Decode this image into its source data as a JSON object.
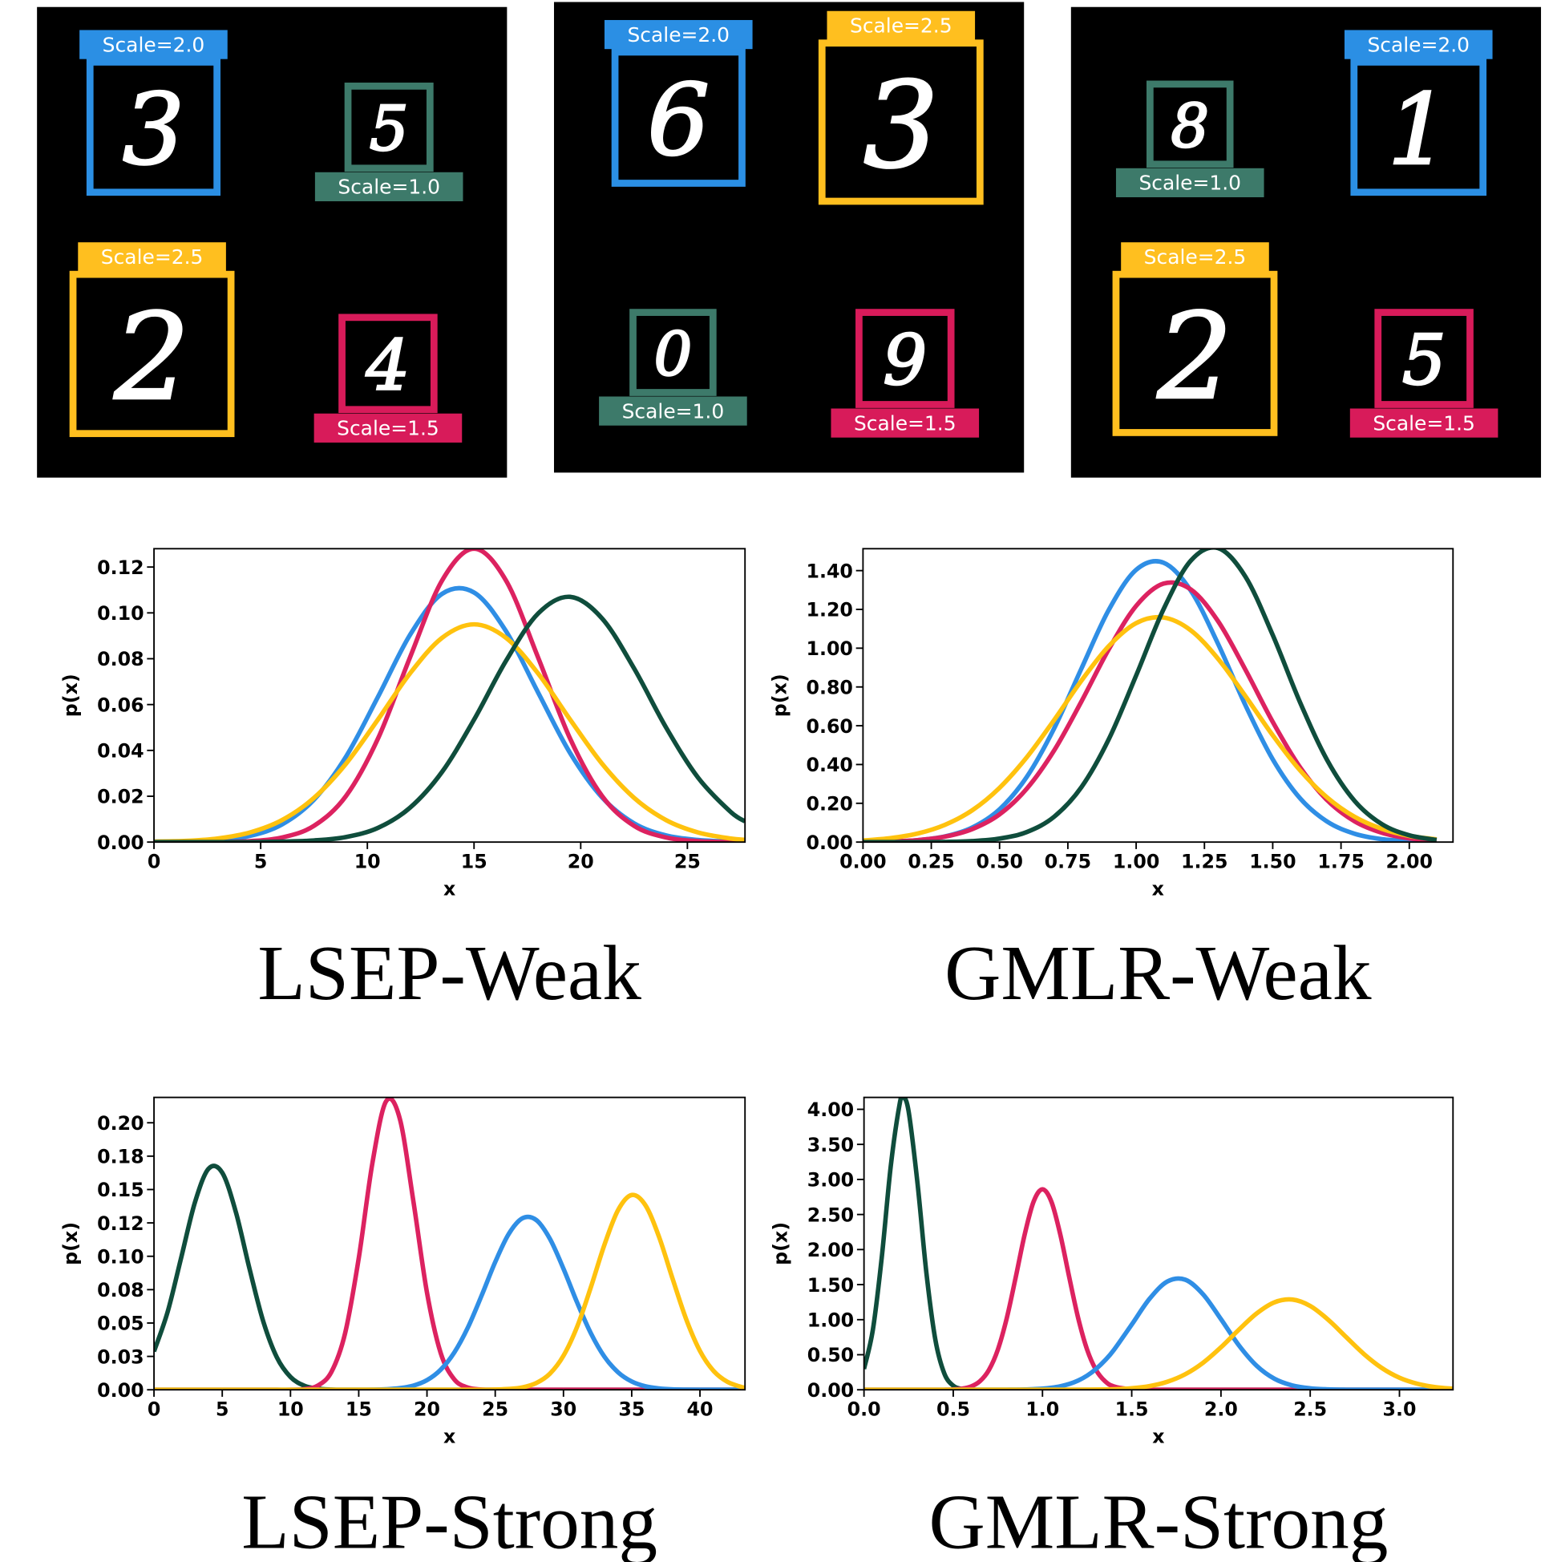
{
  "panels": [
    {
      "boxes": [
        {
          "digit": "3",
          "label": "Scale=2.0",
          "color": "#2b8fe4"
        },
        {
          "digit": "5",
          "label": "Scale=1.0",
          "color": "#3d7a6a"
        },
        {
          "digit": "2",
          "label": "Scale=2.5",
          "color": "#ffbf1f"
        },
        {
          "digit": "4",
          "label": "Scale=1.5",
          "color": "#d81b5a"
        }
      ]
    },
    {
      "boxes": [
        {
          "digit": "6",
          "label": "Scale=2.0",
          "color": "#2b8fe4"
        },
        {
          "digit": "3",
          "label": "Scale=2.5",
          "color": "#ffbf1f"
        },
        {
          "digit": "0",
          "label": "Scale=1.0",
          "color": "#3d7a6a"
        },
        {
          "digit": "9",
          "label": "Scale=1.5",
          "color": "#d81b5a"
        }
      ]
    },
    {
      "boxes": [
        {
          "digit": "8",
          "label": "Scale=1.0",
          "color": "#3d7a6a"
        },
        {
          "digit": "1",
          "label": "Scale=2.0",
          "color": "#2b8fe4"
        },
        {
          "digit": "2",
          "label": "Scale=2.5",
          "color": "#ffbf1f"
        },
        {
          "digit": "5",
          "label": "Scale=1.5",
          "color": "#d81b5a"
        }
      ]
    }
  ],
  "chart_data": [
    {
      "type": "line",
      "title": "LSEP-Weak",
      "x_label": "x",
      "y_label": "p(x)",
      "xlim": [
        0,
        27.7
      ],
      "ylim": [
        0,
        0.128
      ],
      "xticks": [
        0,
        5,
        10,
        15,
        20,
        25
      ],
      "yticks": [
        {
          "value": 0,
          "label": "0.00"
        },
        0.02,
        0.04,
        0.06,
        0.08,
        {
          "value": 0.1,
          "label": "0.10"
        },
        0.12
      ],
      "x": [
        0,
        1.5,
        3,
        4.5,
        6,
        7.5,
        9,
        10.5,
        12,
        13.5,
        15,
        16.5,
        18,
        19.5,
        21,
        22.5,
        24,
        25.5,
        27,
        27.7
      ],
      "series": [
        {
          "color": "#2f8ee5",
          "values": [
            0.0,
            0.0002,
            0.0008,
            0.0027,
            0.0077,
            0.0185,
            0.0373,
            0.0634,
            0.0904,
            0.1083,
            0.1089,
            0.092,
            0.0653,
            0.0389,
            0.0195,
            0.0082,
            0.0029,
            0.0009,
            0.0002,
            0.0001
          ]
        },
        {
          "color": "#dc2260",
          "values": [
            0.0,
            0.0,
            0.0,
            0.0004,
            0.002,
            0.0071,
            0.0201,
            0.0452,
            0.0806,
            0.1141,
            0.128,
            0.1141,
            0.0806,
            0.0452,
            0.0201,
            0.0071,
            0.002,
            0.0004,
            0.0,
            0.0
          ]
        },
        {
          "color": "#ffc20e",
          "values": [
            0.0002,
            0.0005,
            0.0016,
            0.0042,
            0.0096,
            0.0193,
            0.0342,
            0.0535,
            0.0736,
            0.0891,
            0.095,
            0.0891,
            0.0736,
            0.0535,
            0.0342,
            0.0193,
            0.0096,
            0.0042,
            0.0016,
            0.001
          ]
        },
        {
          "color": "#0f4d3c",
          "values": [
            0.0,
            0.0,
            0.0,
            0.0,
            0.0002,
            0.0007,
            0.0022,
            0.0062,
            0.015,
            0.0306,
            0.0534,
            0.0791,
            0.0997,
            0.107,
            0.0976,
            0.0758,
            0.05,
            0.0281,
            0.0134,
            0.009
          ]
        }
      ]
    },
    {
      "type": "line",
      "title": "GMLR-Weak",
      "x_label": "x",
      "y_label": "p(x)",
      "xlim": [
        0,
        2.16
      ],
      "ylim": [
        0,
        1.513
      ],
      "xticks": [
        {
          "value": 0,
          "label": "0.00"
        },
        0.25,
        {
          "value": 0.5,
          "label": "0.50"
        },
        0.75,
        {
          "value": 1,
          "label": "1.00"
        },
        1.25,
        {
          "value": 1.5,
          "label": "1.50"
        },
        1.75,
        {
          "value": 2,
          "label": "2.00"
        }
      ],
      "yticks": [
        {
          "value": 0,
          "label": "0.00"
        },
        {
          "value": 0.2,
          "label": "0.20"
        },
        {
          "value": 0.4,
          "label": "0.40"
        },
        {
          "value": 0.6,
          "label": "0.60"
        },
        {
          "value": 0.8,
          "label": "0.80"
        },
        {
          "value": 1,
          "label": "1.00"
        },
        {
          "value": 1.2,
          "label": "1.20"
        },
        {
          "value": 1.4,
          "label": "1.40"
        }
      ],
      "x": [
        0,
        0.1,
        0.2,
        0.3,
        0.4,
        0.5,
        0.6,
        0.7,
        0.8,
        0.9,
        1.0,
        1.1,
        1.2,
        1.3,
        1.4,
        1.5,
        1.6,
        1.7,
        1.8,
        1.9,
        2.0,
        2.1
      ],
      "series": [
        {
          "color": "#2f8ee5",
          "values": [
            0.001,
            0.003,
            0.01,
            0.029,
            0.075,
            0.169,
            0.337,
            0.587,
            0.896,
            1.198,
            1.404,
            1.441,
            1.297,
            1.022,
            0.706,
            0.427,
            0.226,
            0.105,
            0.043,
            0.015,
            0.005,
            0.001
          ]
        },
        {
          "color": "#dc2260",
          "values": [
            0.001,
            0.003,
            0.01,
            0.028,
            0.067,
            0.143,
            0.276,
            0.473,
            0.726,
            0.995,
            1.218,
            1.333,
            1.303,
            1.139,
            0.889,
            0.62,
            0.386,
            0.215,
            0.107,
            0.048,
            0.019,
            0.007
          ]
        },
        {
          "color": "#ffc20e",
          "values": [
            0.008,
            0.02,
            0.044,
            0.089,
            0.164,
            0.28,
            0.438,
            0.63,
            0.833,
            1.011,
            1.129,
            1.158,
            1.092,
            0.945,
            0.753,
            0.551,
            0.37,
            0.229,
            0.13,
            0.068,
            0.032,
            0.014
          ]
        },
        {
          "color": "#0f4d3c",
          "values": [
            0.0,
            0.0,
            0.0,
            0.001,
            0.005,
            0.018,
            0.052,
            0.131,
            0.284,
            0.531,
            0.859,
            1.2,
            1.451,
            1.516,
            1.369,
            1.068,
            0.721,
            0.421,
            0.212,
            0.092,
            0.035,
            0.011
          ]
        }
      ]
    },
    {
      "type": "line",
      "title": "LSEP-Strong",
      "x_label": "x",
      "y_label": "p(x)",
      "xlim": [
        0,
        43.3
      ],
      "ylim": [
        0,
        0.219
      ],
      "xticks": [
        0,
        5,
        10,
        15,
        20,
        25,
        30,
        35,
        40
      ],
      "yticks": [
        {
          "value": 0,
          "label": "0.00"
        },
        {
          "value": 0.025,
          "label": "0.03"
        },
        0.05,
        {
          "value": 0.075,
          "label": "0.08"
        },
        {
          "value": 0.1,
          "label": "0.10"
        },
        {
          "value": 0.125,
          "label": "0.12"
        },
        0.15,
        {
          "value": 0.175,
          "label": "0.18"
        },
        {
          "value": 0.2,
          "label": "0.20"
        }
      ],
      "x": [
        0,
        1,
        2,
        3,
        4,
        5,
        6,
        7,
        8,
        9,
        10,
        11,
        12,
        13,
        14,
        15,
        16,
        17,
        18,
        19,
        20,
        21,
        22,
        23,
        24,
        25,
        26,
        27,
        28,
        29,
        30,
        31,
        32,
        33,
        34,
        35,
        36,
        37,
        38,
        39,
        40,
        41,
        42,
        43,
        43.3
      ],
      "series": [
        {
          "color": "#0f4d3c",
          "values": [
            0.0287,
            0.0584,
            0.0993,
            0.1404,
            0.1656,
            0.1626,
            0.133,
            0.0906,
            0.0514,
            0.0243,
            0.0096,
            0.0031,
            0.0009,
            0.0002,
            0,
            0,
            0,
            0,
            0,
            0,
            0,
            0,
            0,
            0,
            0,
            0,
            0,
            0,
            0,
            0,
            0,
            0,
            0,
            0,
            0,
            0,
            0,
            0,
            0,
            0,
            0,
            0,
            0,
            0,
            0
          ]
        },
        {
          "color": "#dc2260",
          "values": [
            0,
            0,
            0,
            0,
            0,
            0,
            0,
            0,
            0,
            0,
            0,
            0.0005,
            0.0031,
            0.0134,
            0.0423,
            0.0985,
            0.1697,
            0.216,
            0.2034,
            0.1415,
            0.0728,
            0.0277,
            0.0078,
            0.0016,
            0.0002,
            0,
            0,
            0,
            0,
            0,
            0,
            0,
            0,
            0,
            0,
            0,
            0,
            0,
            0,
            0,
            0,
            0,
            0,
            0,
            0
          ]
        },
        {
          "color": "#2f8ee5",
          "values": [
            0,
            0,
            0,
            0,
            0,
            0,
            0,
            0,
            0,
            0,
            0,
            0,
            0,
            0,
            0,
            0,
            0.0001,
            0.0004,
            0.0012,
            0.0031,
            0.0072,
            0.015,
            0.0279,
            0.0467,
            0.0705,
            0.0957,
            0.1169,
            0.1285,
            0.1272,
            0.1132,
            0.0907,
            0.0654,
            0.0425,
            0.0248,
            0.0131,
            0.0062,
            0.0026,
            0.001,
            0.0003,
            0.0001,
            0,
            0,
            0,
            0,
            0
          ]
        },
        {
          "color": "#ffc20e",
          "values": [
            0,
            0,
            0,
            0,
            0,
            0,
            0,
            0,
            0,
            0,
            0,
            0,
            0,
            0,
            0,
            0,
            0,
            0,
            0,
            0,
            0,
            0,
            0,
            0,
            0,
            0.0002,
            0.0006,
            0.0018,
            0.005,
            0.012,
            0.0255,
            0.0472,
            0.0766,
            0.1086,
            0.1346,
            0.1459,
            0.1383,
            0.1146,
            0.083,
            0.0526,
            0.0291,
            0.0141,
            0.006,
            0.0022,
            0.0016
          ]
        }
      ]
    },
    {
      "type": "line",
      "title": "GMLR-Strong",
      "x_label": "x",
      "y_label": "p(x)",
      "xlim": [
        0,
        3.3
      ],
      "ylim": [
        0,
        4.17
      ],
      "xticks": [
        {
          "value": 0,
          "label": "0.0"
        },
        0.5,
        {
          "value": 1,
          "label": "1.0"
        },
        1.5,
        {
          "value": 2,
          "label": "2.0"
        },
        2.5,
        {
          "value": 3,
          "label": "3.0"
        }
      ],
      "yticks": [
        {
          "value": 0,
          "label": "0.00"
        },
        {
          "value": 0.5,
          "label": "0.50"
        },
        {
          "value": 1,
          "label": "1.00"
        },
        {
          "value": 1.5,
          "label": "1.50"
        },
        {
          "value": 2,
          "label": "2.00"
        },
        {
          "value": 2.5,
          "label": "2.50"
        },
        {
          "value": 3,
          "label": "3.00"
        },
        {
          "value": 3.5,
          "label": "3.50"
        },
        {
          "value": 4,
          "label": "4.00"
        }
      ],
      "x": [
        0,
        0.05,
        0.1,
        0.15,
        0.2,
        0.22,
        0.25,
        0.3,
        0.35,
        0.4,
        0.45,
        0.5,
        0.55,
        0.6,
        0.65,
        0.7,
        0.75,
        0.8,
        0.85,
        0.9,
        0.95,
        1.0,
        1.05,
        1.1,
        1.15,
        1.2,
        1.25,
        1.3,
        1.35,
        1.4,
        1.5,
        1.6,
        1.7,
        1.8,
        1.9,
        2.0,
        2.1,
        2.2,
        2.3,
        2.4,
        2.5,
        2.6,
        2.7,
        2.8,
        2.9,
        3.0,
        3.1,
        3.2,
        3.3
      ],
      "series": [
        {
          "color": "#0f4d3c",
          "values": [
            0.297,
            0.861,
            1.9,
            3.191,
            4.08,
            4.17,
            3.97,
            2.94,
            1.658,
            0.711,
            0.232,
            0.058,
            0.011,
            0.002,
            0,
            0,
            0,
            0,
            0,
            0,
            0,
            0,
            0,
            0,
            0,
            0,
            0,
            0,
            0,
            0,
            0,
            0,
            0,
            0,
            0,
            0,
            0,
            0,
            0,
            0,
            0,
            0,
            0,
            0,
            0,
            0,
            0,
            0,
            0
          ]
        },
        {
          "color": "#dc2260",
          "values": [
            0,
            0,
            0,
            0,
            0,
            0,
            0,
            0,
            0,
            0,
            0.001,
            0.005,
            0.016,
            0.047,
            0.123,
            0.283,
            0.573,
            1.023,
            1.604,
            2.212,
            2.682,
            2.86,
            2.682,
            2.212,
            1.604,
            1.023,
            0.573,
            0.283,
            0.123,
            0.047,
            0.005,
            0,
            0,
            0,
            0,
            0,
            0,
            0,
            0,
            0,
            0,
            0,
            0,
            0,
            0,
            0,
            0,
            0,
            0
          ]
        },
        {
          "color": "#2f8ee5",
          "values": [
            0,
            0,
            0,
            0,
            0,
            0,
            0,
            0,
            0,
            0,
            0,
            0,
            0,
            0,
            0,
            0,
            0,
            0.001,
            0.002,
            0.004,
            0.009,
            0.016,
            0.029,
            0.05,
            0.083,
            0.132,
            0.202,
            0.297,
            0.419,
            0.568,
            0.93,
            1.298,
            1.545,
            1.57,
            1.361,
            1.007,
            0.635,
            0.342,
            0.157,
            0.062,
            0.021,
            0.006,
            0.001,
            0,
            0,
            0,
            0,
            0,
            0
          ]
        },
        {
          "color": "#ffc20e",
          "values": [
            0,
            0,
            0,
            0,
            0,
            0,
            0,
            0,
            0,
            0,
            0,
            0,
            0,
            0,
            0,
            0,
            0,
            0,
            0,
            0,
            0,
            0,
            0,
            0,
            0,
            0.001,
            0.002,
            0.003,
            0.005,
            0.008,
            0.022,
            0.053,
            0.115,
            0.222,
            0.386,
            0.606,
            0.856,
            1.089,
            1.248,
            1.287,
            1.196,
            1.001,
            0.755,
            0.512,
            0.313,
            0.172,
            0.086,
            0.038,
            0.015
          ]
        }
      ]
    }
  ]
}
